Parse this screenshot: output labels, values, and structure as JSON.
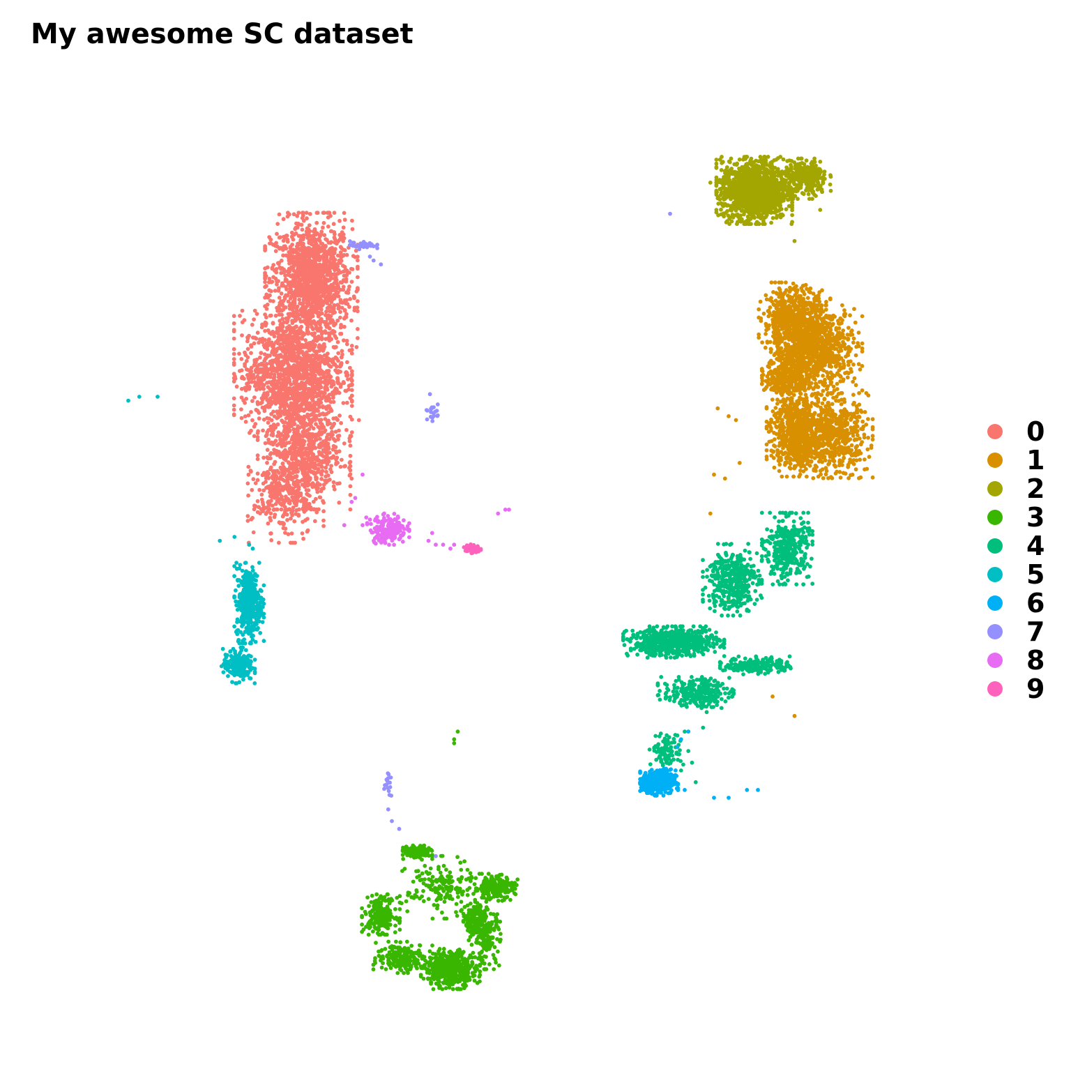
{
  "chart_data": {
    "type": "scatter",
    "title": "My awesome SC dataset",
    "xlabel": "",
    "ylabel": "",
    "xlim": [
      -12,
      12
    ],
    "ylim": [
      -12,
      12
    ],
    "grid": false,
    "legend_placement": "right",
    "series": [
      {
        "name": "0",
        "color": "#F8766D",
        "clusters": [
          [
            -5.4,
            6.6,
            1.1,
            1.5,
            1300
          ],
          [
            -5.9,
            4.2,
            1.4,
            1.4,
            1300
          ],
          [
            -5.6,
            2.2,
            1.1,
            1.3,
            700
          ],
          [
            -6.1,
            1.0,
            0.9,
            1.0,
            300
          ]
        ],
        "points": [
          [
            -7.3,
            3.8
          ],
          [
            -7.1,
            3.8
          ],
          [
            -6.8,
            3.8
          ],
          [
            -4.1,
            3.0
          ],
          [
            -4.5,
            2.4
          ],
          [
            -4.6,
            1.8
          ],
          [
            -4.3,
            1.5
          ]
        ]
      },
      {
        "name": "1",
        "color": "#D89000",
        "clusters": [
          [
            7.8,
            5.5,
            0.85,
            0.9,
            700
          ],
          [
            8.5,
            4.8,
            1.0,
            1.0,
            700
          ],
          [
            7.9,
            2.7,
            0.75,
            1.0,
            700
          ],
          [
            8.9,
            2.6,
            0.9,
            0.95,
            500
          ],
          [
            7.6,
            4.1,
            0.6,
            0.5,
            300
          ]
        ],
        "points": [
          [
            6.2,
            3.0
          ],
          [
            6.0,
            3.1
          ],
          [
            5.7,
            3.3
          ],
          [
            6.3,
            1.9
          ],
          [
            5.9,
            1.5
          ],
          [
            5.6,
            1.6
          ],
          [
            5.5,
            0.6
          ],
          [
            6.0,
            -1.6
          ],
          [
            7.2,
            -4.1
          ],
          [
            7.8,
            -4.6
          ]
        ]
      },
      {
        "name": "2",
        "color": "#A3A500",
        "clusters": [
          [
            6.7,
            8.9,
            0.9,
            0.75,
            1400
          ],
          [
            8.1,
            9.2,
            0.6,
            0.45,
            300
          ]
        ],
        "points": [
          [
            5.5,
            9.1
          ],
          [
            5.7,
            8.7
          ],
          [
            7.8,
            7.6
          ],
          [
            8.5,
            8.4
          ]
        ]
      },
      {
        "name": "3",
        "color": "#39B600",
        "clusters": [
          [
            -3.5,
            -9.7,
            0.45,
            0.45,
            220
          ],
          [
            -2.5,
            -8.1,
            0.35,
            0.15,
            160
          ],
          [
            -1.9,
            -9.0,
            0.9,
            0.7,
            160
          ],
          [
            -1.6,
            -11.1,
            0.7,
            0.45,
            450
          ],
          [
            -0.4,
            -9.0,
            0.55,
            0.3,
            200
          ],
          [
            -0.6,
            -10.3,
            0.35,
            0.7,
            140
          ],
          [
            -2.9,
            -10.8,
            0.7,
            0.35,
            200
          ],
          [
            -0.9,
            -9.9,
            0.3,
            0.5,
            140
          ]
        ],
        "points": [
          [
            -1.4,
            -5.0
          ],
          [
            -1.5,
            -5.3
          ],
          [
            -1.5,
            -5.2
          ]
        ]
      },
      {
        "name": "4",
        "color": "#00BF7D",
        "clusters": [
          [
            4.5,
            -2.7,
            1.2,
            0.35,
            600
          ],
          [
            6.1,
            -1.1,
            0.7,
            0.8,
            400
          ],
          [
            7.6,
            -0.3,
            0.6,
            0.8,
            350
          ],
          [
            5.1,
            -4.0,
            0.9,
            0.35,
            250
          ],
          [
            6.8,
            -3.3,
            0.9,
            0.2,
            200
          ],
          [
            4.3,
            -5.5,
            0.4,
            0.4,
            100
          ]
        ],
        "points": [
          [
            5.4,
            -4.5
          ],
          [
            5.3,
            -4.9
          ],
          [
            4.8,
            -5.0
          ],
          [
            4.6,
            -5.1
          ],
          [
            4.9,
            -5.5
          ],
          [
            5.0,
            -5.8
          ],
          [
            5.1,
            -6.3
          ],
          [
            4.7,
            -6.0
          ]
        ]
      },
      {
        "name": "6",
        "color": "#00B0F6",
        "clusters": [
          [
            4.1,
            -6.3,
            0.45,
            0.3,
            450
          ]
        ],
        "points": [
          [
            5.6,
            -6.7
          ],
          [
            6.0,
            -6.7
          ],
          [
            6.5,
            -6.5
          ],
          [
            6.8,
            -6.5
          ],
          [
            4.9,
            -5.0
          ],
          [
            4.7,
            -5.2
          ],
          [
            4.6,
            -5.4
          ],
          [
            4.8,
            -6.5
          ]
        ]
      },
      {
        "name": "5",
        "color": "#00BFC4",
        "clusters": [
          [
            -7.1,
            -1.7,
            0.35,
            0.9,
            380
          ],
          [
            -7.4,
            -3.3,
            0.4,
            0.4,
            200
          ]
        ],
        "points": [
          [
            -10.4,
            3.5
          ],
          [
            -10.1,
            3.6
          ],
          [
            -9.6,
            3.6
          ],
          [
            -7.9,
            -0.1
          ],
          [
            -7.5,
            -0.0
          ],
          [
            -7.1,
            -0.2
          ],
          [
            -7.0,
            -0.3
          ]
        ]
      },
      {
        "name": "7",
        "color": "#9590FF",
        "clusters": [
          [
            -4.0,
            7.5,
            0.35,
            0.1,
            40
          ],
          [
            -2.1,
            3.3,
            0.2,
            0.5,
            20
          ],
          [
            -3.3,
            -6.4,
            0.1,
            0.3,
            15
          ]
        ],
        "points": [
          [
            -3.8,
            7.2
          ],
          [
            -3.7,
            7.1
          ],
          [
            -3.5,
            7.0
          ],
          [
            -3.3,
            -7.0
          ],
          [
            -3.2,
            -7.3
          ],
          [
            -3.0,
            -7.5
          ],
          [
            -2.0,
            -8.2
          ],
          [
            4.4,
            8.3
          ]
        ]
      },
      {
        "name": "8",
        "color": "#E76BF3",
        "clusters": [
          [
            -3.3,
            0.2,
            0.5,
            0.35,
            180
          ]
        ],
        "points": [
          [
            -4.5,
            0.3
          ],
          [
            -4.0,
            0.3
          ],
          [
            -4.2,
            1.0
          ],
          [
            -4.0,
            1.6
          ],
          [
            -4.3,
            0.9
          ],
          [
            -3.9,
            0.5
          ],
          [
            -2.2,
            -0.1
          ],
          [
            -2.0,
            -0.2
          ],
          [
            -1.8,
            -0.2
          ],
          [
            -2.1,
            0.1
          ],
          [
            -0.3,
            0.6
          ],
          [
            -0.1,
            0.7
          ],
          [
            0.0,
            0.7
          ],
          [
            -1.5,
            -0.2
          ],
          [
            -1.6,
            -0.3
          ]
        ]
      },
      {
        "name": "9",
        "color": "#FF62BC",
        "clusters": [
          [
            -1.0,
            -0.3,
            0.2,
            0.12,
            60
          ]
        ],
        "points": []
      }
    ],
    "legend": [
      "0",
      "1",
      "2",
      "3",
      "4",
      "5",
      "6",
      "7",
      "8",
      "9"
    ]
  }
}
